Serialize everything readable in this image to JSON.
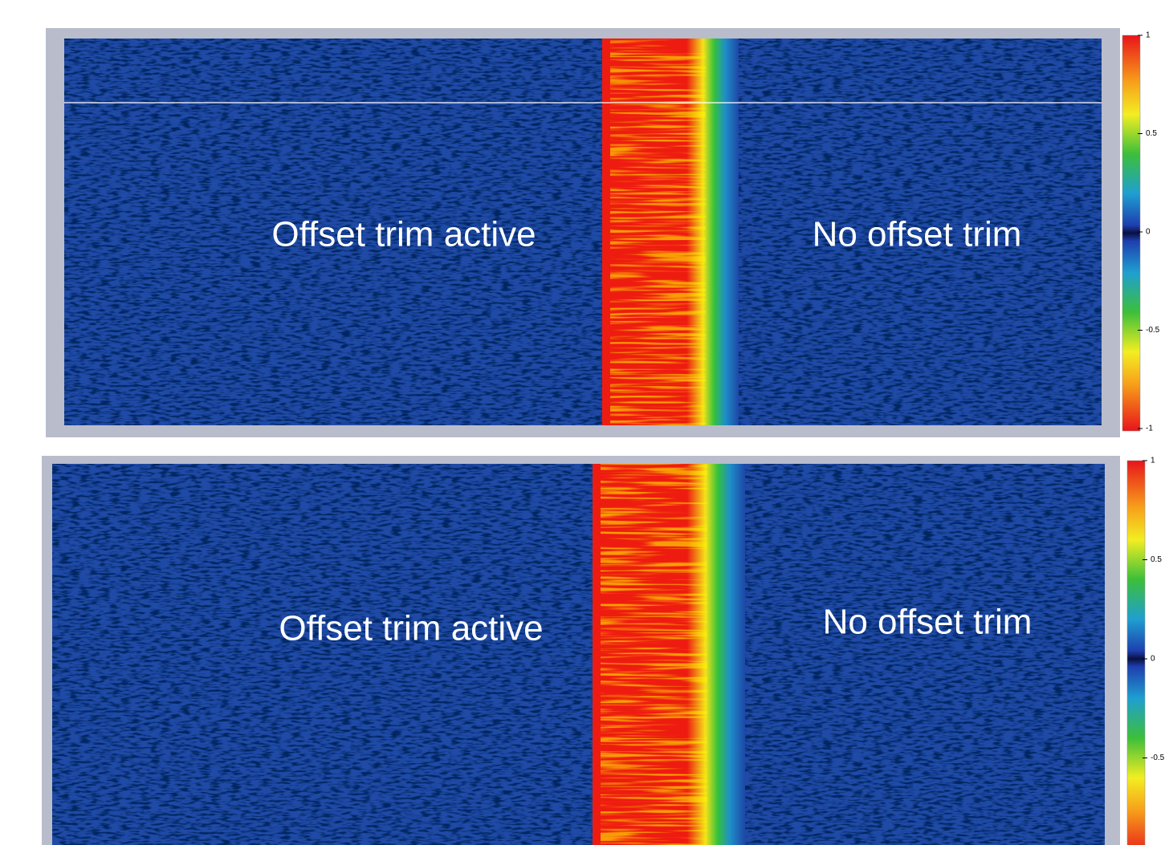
{
  "panels": [
    {
      "left_label": "Offset trim active",
      "right_label": "No offset trim",
      "colorbar_ticks": [
        1,
        0.5,
        0,
        -0.5,
        -1
      ]
    },
    {
      "left_label": "Offset trim active",
      "right_label": "No offset trim",
      "colorbar_ticks": [
        1,
        0.5,
        0,
        -0.5
      ]
    }
  ]
}
